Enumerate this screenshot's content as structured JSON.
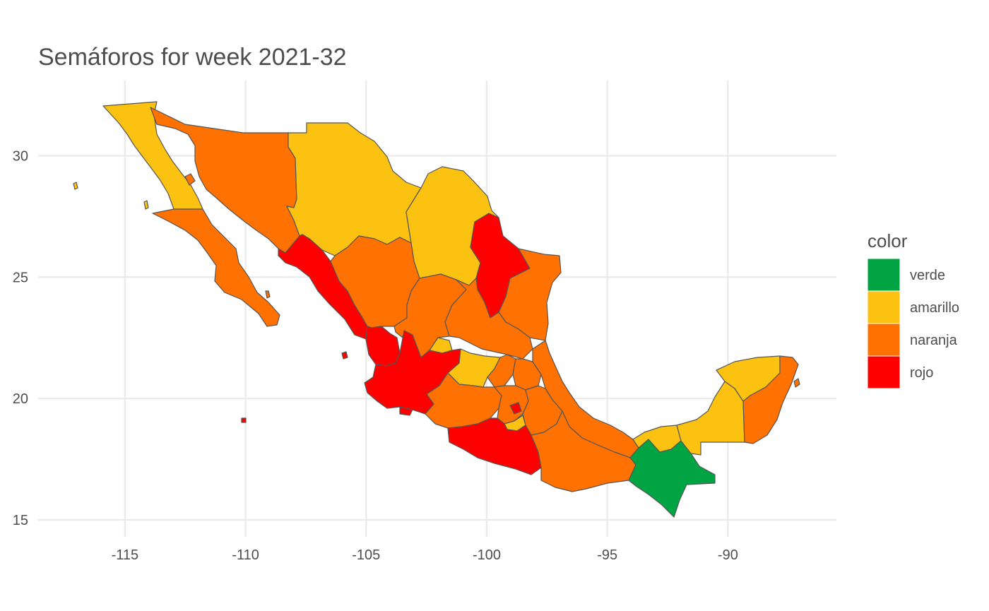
{
  "title": "Semáforos for week 2021-32",
  "axes": {
    "x_ticks": [
      -115,
      -110,
      -105,
      -100,
      -95,
      -90
    ],
    "y_ticks": [
      15,
      20,
      25,
      30
    ],
    "xlim": [
      -118.6,
      -85.5
    ],
    "ylim": [
      14.3,
      33.1
    ]
  },
  "legend": {
    "title": "color",
    "items": [
      {
        "key": "verde",
        "label": "verde",
        "color": "#00a443"
      },
      {
        "key": "amarillo",
        "label": "amarillo",
        "color": "#fcc212"
      },
      {
        "key": "naranja",
        "label": "naranja",
        "color": "#ff7100"
      },
      {
        "key": "rojo",
        "label": "rojo",
        "color": "#ff0000"
      }
    ]
  },
  "chart_data": {
    "type": "choropleth",
    "title": "Semáforos for week 2021-32",
    "legend_title": "color",
    "categories": [
      "verde",
      "amarillo",
      "naranja",
      "rojo"
    ],
    "regions": [
      {
        "name": "Baja California",
        "value": "amarillo"
      },
      {
        "name": "Baja California Sur",
        "value": "naranja"
      },
      {
        "name": "Sonora",
        "value": "naranja"
      },
      {
        "name": "Chihuahua",
        "value": "amarillo"
      },
      {
        "name": "Coahuila",
        "value": "amarillo"
      },
      {
        "name": "Nuevo León",
        "value": "rojo"
      },
      {
        "name": "Tamaulipas",
        "value": "naranja"
      },
      {
        "name": "Sinaloa",
        "value": "rojo"
      },
      {
        "name": "Durango",
        "value": "naranja"
      },
      {
        "name": "Zacatecas",
        "value": "naranja"
      },
      {
        "name": "San Luis Potosí",
        "value": "naranja"
      },
      {
        "name": "Nayarit",
        "value": "rojo"
      },
      {
        "name": "Aguascalientes",
        "value": "amarillo"
      },
      {
        "name": "Jalisco",
        "value": "rojo"
      },
      {
        "name": "Guanajuato",
        "value": "amarillo"
      },
      {
        "name": "Querétaro",
        "value": "naranja"
      },
      {
        "name": "Hidalgo",
        "value": "naranja"
      },
      {
        "name": "Veracruz",
        "value": "naranja"
      },
      {
        "name": "Colima",
        "value": "rojo"
      },
      {
        "name": "Michoacán",
        "value": "naranja"
      },
      {
        "name": "Estado de México",
        "value": "naranja"
      },
      {
        "name": "Ciudad de México",
        "value": "rojo"
      },
      {
        "name": "Morelos",
        "value": "amarillo"
      },
      {
        "name": "Tlaxcala",
        "value": "naranja"
      },
      {
        "name": "Puebla",
        "value": "naranja"
      },
      {
        "name": "Guerrero",
        "value": "rojo"
      },
      {
        "name": "Oaxaca",
        "value": "naranja"
      },
      {
        "name": "Chiapas",
        "value": "verde"
      },
      {
        "name": "Tabasco",
        "value": "amarillo"
      },
      {
        "name": "Campeche",
        "value": "amarillo"
      },
      {
        "name": "Yucatán",
        "value": "amarillo"
      },
      {
        "name": "Quintana Roo",
        "value": "naranja"
      }
    ]
  }
}
